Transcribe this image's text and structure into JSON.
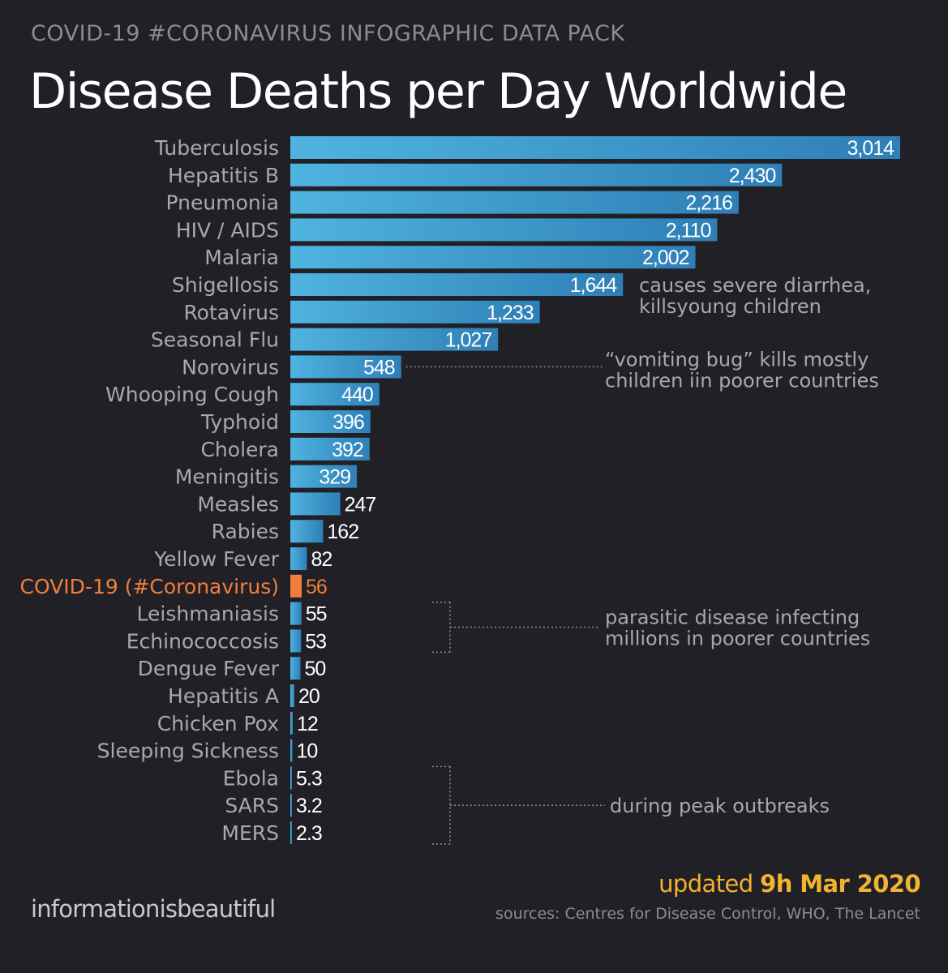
{
  "header": {
    "kicker": "COVID-19 #CORONAVIRUS INFOGRAPHIC DATA PACK",
    "title": "Disease Deaths per Day Worldwide"
  },
  "colors": {
    "background": "#212026",
    "bar_start": "#2e7fb6",
    "bar_end": "#4fb3e0",
    "highlight": "#ef7f3c",
    "label": "#a9a8ad",
    "value": "#ffffff",
    "annotation": "#a9a8ad"
  },
  "chart_data": {
    "type": "bar",
    "orientation": "horizontal",
    "categories": [
      "Tuberculosis",
      "Hepatitis B",
      "Pneumonia",
      "HIV / AIDS",
      "Malaria",
      "Shigellosis",
      "Rotavirus",
      "Seasonal Flu",
      "Norovirus",
      "Whooping Cough",
      "Typhoid",
      "Cholera",
      "Meningitis",
      "Measles",
      "Rabies",
      "Yellow Fever",
      "COVID-19 (#Coronavirus)",
      "Leishmaniasis",
      "Echinococcosis",
      "Dengue Fever",
      "Hepatitis A",
      "Chicken Pox",
      "Sleeping Sickness",
      "Ebola",
      "SARS",
      "MERS"
    ],
    "values": [
      3014,
      2430,
      2216,
      2110,
      2002,
      1644,
      1233,
      1027,
      548,
      440,
      396,
      392,
      329,
      247,
      162,
      82,
      56,
      55,
      53,
      50,
      20,
      12,
      10,
      5.3,
      3.2,
      2.3
    ],
    "value_labels": [
      "3,014",
      "2,430",
      "2,216",
      "2,110",
      "2,002",
      "1,644",
      "1,233",
      "1,027",
      "548",
      "440",
      "396",
      "392",
      "329",
      "247",
      "162",
      "82",
      "56",
      "55",
      "53",
      "50",
      "20",
      "12",
      "10",
      "5.3",
      "3.2",
      "2.3"
    ],
    "highlight_category": "COVID-19 (#Coronavirus)",
    "xlim": [
      0,
      3014
    ],
    "annotations": [
      {
        "text_lines": [
          "causes severe diarrhea,",
          "killsyoung children"
        ],
        "targets": [
          "Shigellosis"
        ]
      },
      {
        "text_lines": [
          "“vomiting bug” kills mostly",
          "children iin poorer countries"
        ],
        "targets": [
          "Norovirus"
        ]
      },
      {
        "text_lines": [
          "parasitic disease infecting",
          "millions in poorer countries"
        ],
        "targets": [
          "Leishmaniasis",
          "Echinococcosis"
        ]
      },
      {
        "text_lines": [
          "during peak outbreaks"
        ],
        "targets": [
          "Ebola",
          "SARS",
          "MERS"
        ]
      }
    ]
  },
  "footer": {
    "brand": "informationisbeautiful",
    "updated_prefix": "updated",
    "updated_date": "9h Mar 2020",
    "sources": "sources: Centres for Disease Control, WHO, The Lancet"
  }
}
